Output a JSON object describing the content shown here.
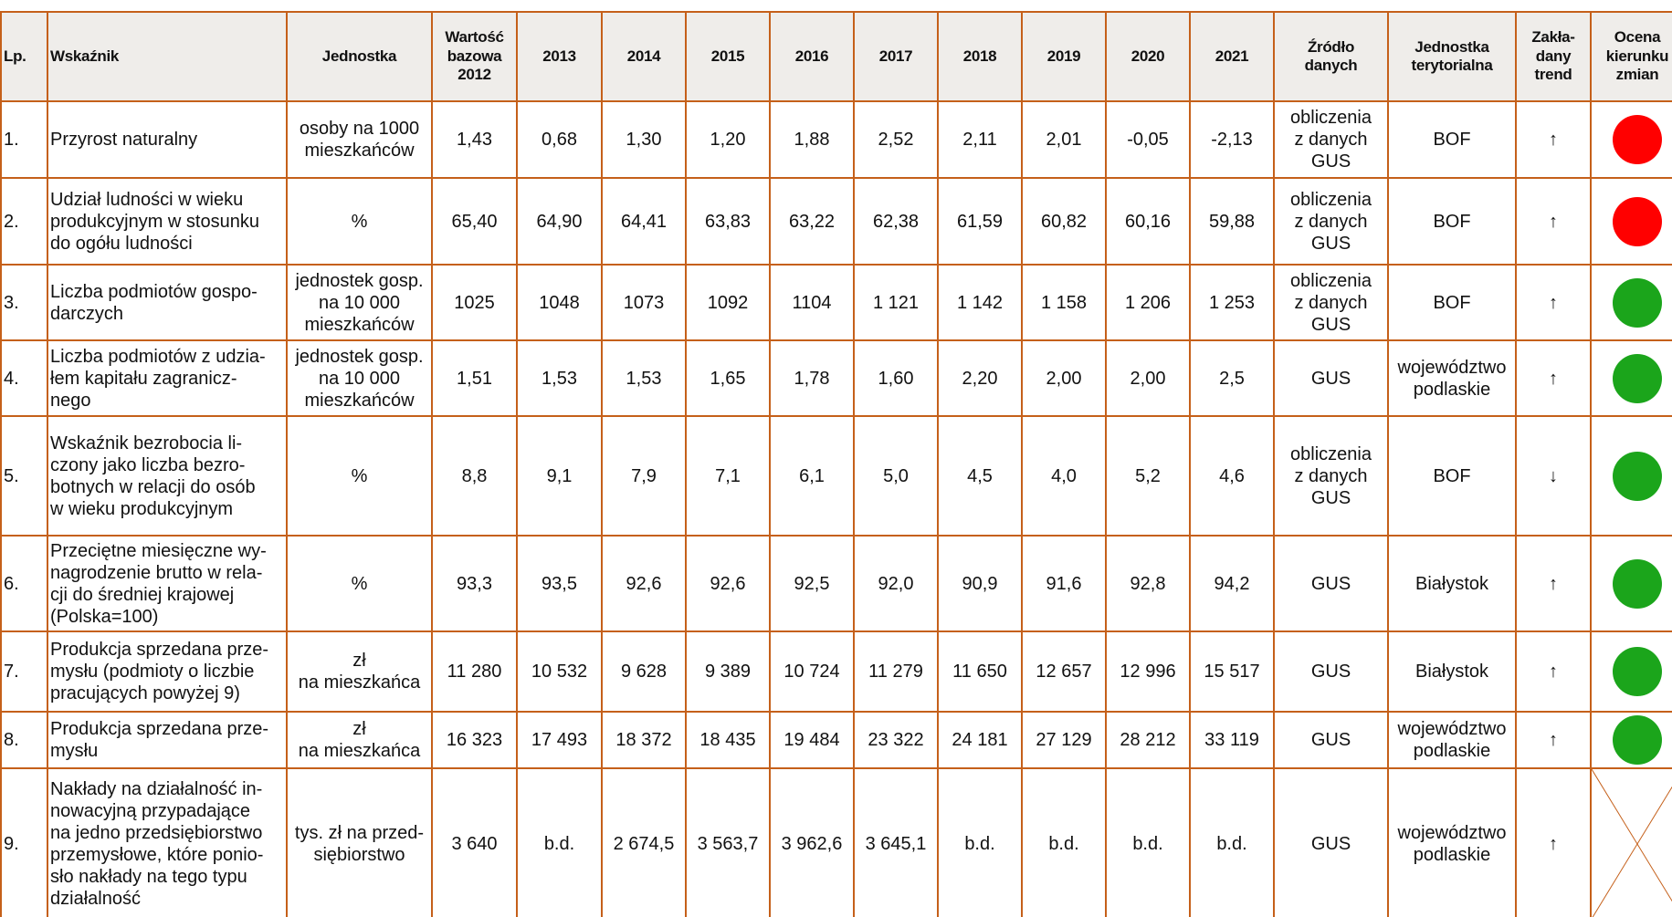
{
  "table": {
    "columns": [
      "Lp.",
      "Wskaźnik",
      "Jednostka",
      "Wartość\nbazowa\n2012",
      "2013",
      "2014",
      "2015",
      "2016",
      "2017",
      "2018",
      "2019",
      "2020",
      "2021",
      "Źródło\ndanych",
      "Jednostka\nterytorialna",
      "Zakła-\ndany\ntrend",
      "Ocena\nkierunku\nzmian"
    ],
    "rows": [
      {
        "cells": [
          "1.",
          "Przyrost naturalny",
          "osoby na 1000\nmieszkańców",
          "1,43",
          "0,68",
          "1,30",
          "1,20",
          "1,88",
          "2,52",
          "2,11",
          "2,01",
          "-0,05",
          "-2,13",
          "obliczenia\nz danych\nGUS",
          "BOF",
          "↑"
        ],
        "assessment_color": "#ff0000"
      },
      {
        "cells": [
          "2.",
          "Udział ludności w wieku\nprodukcyjnym w stosunku\ndo ogółu ludności",
          "%",
          "65,40",
          "64,90",
          "64,41",
          "63,83",
          "63,22",
          "62,38",
          "61,59",
          "60,82",
          "60,16",
          "59,88",
          "obliczenia\nz danych\nGUS",
          "BOF",
          "↑"
        ],
        "assessment_color": "#ff0000"
      },
      {
        "cells": [
          "3.",
          "Liczba podmiotów gospo-\ndarczych",
          "jednostek gosp.\nna 10 000\nmieszkańców",
          "1025",
          "1048",
          "1073",
          "1092",
          "1104",
          "1 121",
          "1 142",
          "1 158",
          "1 206",
          "1 253",
          "obliczenia\nz danych\nGUS",
          "BOF",
          "↑"
        ],
        "assessment_color": "#1ba51b"
      },
      {
        "cells": [
          "4.",
          "Liczba podmiotów z udzia-\nłem kapitału zagranicz-\nnego",
          "jednostek gosp.\nna 10 000\nmieszkańców",
          "1,51",
          "1,53",
          "1,53",
          "1,65",
          "1,78",
          "1,60",
          "2,20",
          "2,00",
          "2,00",
          "2,5",
          "GUS",
          "województwo\npodlaskie",
          "↑"
        ],
        "assessment_color": "#1ba51b"
      },
      {
        "cells": [
          "5.",
          "Wskaźnik bezrobocia li-\nczony jako liczba bezro-\nbotnych w relacji do osób\nw wieku produkcyjnym",
          "%",
          "8,8",
          "9,1",
          "7,9",
          "7,1",
          "6,1",
          "5,0",
          "4,5",
          "4,0",
          "5,2",
          "4,6",
          "obliczenia\nz danych\nGUS",
          "BOF",
          "↓"
        ],
        "assessment_color": "#1ba51b"
      },
      {
        "cells": [
          "6.",
          "Przeciętne miesięczne wy-\nnagrodzenie brutto w rela-\ncji do średniej krajowej\n(Polska=100)",
          "%",
          "93,3",
          "93,5",
          "92,6",
          "92,6",
          "92,5",
          "92,0",
          "90,9",
          "91,6",
          "92,8",
          "94,2",
          "GUS",
          "Białystok",
          "↑"
        ],
        "assessment_color": "#1ba51b"
      },
      {
        "cells": [
          "7.",
          "Produkcja sprzedana prze-\nmysłu (podmioty o liczbie\npracujących powyżej 9)",
          "zł\nna mieszkańca",
          "11 280",
          "10 532",
          "9 628",
          "9 389",
          "10 724",
          "11 279",
          "11 650",
          "12 657",
          "12 996",
          "15 517",
          "GUS",
          "Białystok",
          "↑"
        ],
        "assessment_color": "#1ba51b"
      },
      {
        "cells": [
          "8.",
          "Produkcja sprzedana prze-\nmysłu",
          "zł\nna mieszkańca",
          "16 323",
          "17 493",
          "18 372",
          "18 435",
          "19 484",
          "23 322",
          "24 181",
          "27 129",
          "28 212",
          "33 119",
          "GUS",
          "województwo\npodlaskie",
          "↑"
        ],
        "assessment_color": "#1ba51b"
      },
      {
        "cells": [
          "9.",
          "Nakłady na działalność in-\nnowacyjną przypadające\nna jedno przedsiębiorstwo\nprzemysłowe, które ponio-\nsło nakłady na tego typu\ndziałalność",
          "tys. zł na przed-\nsiębiorstwo",
          "3 640",
          "b.d.",
          "2 674,5",
          "3 563,7",
          "3 962,6",
          "3 645,1",
          "b.d.",
          "b.d.",
          "b.d.",
          "b.d.",
          "GUS",
          "województwo\npodlaskie",
          "↑"
        ],
        "assessment_color": null
      }
    ]
  }
}
